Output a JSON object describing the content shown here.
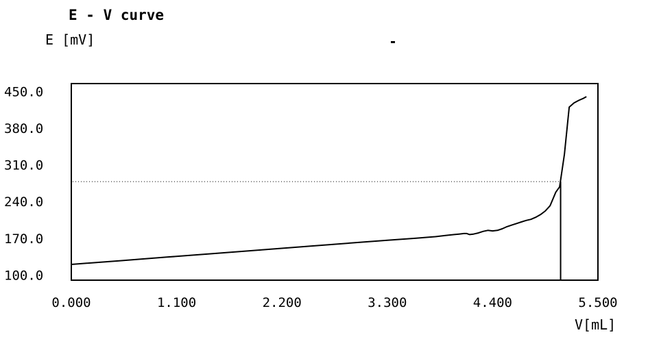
{
  "chart_data": {
    "type": "line",
    "title": "E - V curve",
    "ylabel": "E [mV]",
    "xlabel": "V[mL]",
    "xlim": [
      0.0,
      5.5
    ],
    "ylim": [
      90.0,
      465.0
    ],
    "x_ticks": [
      "0.000",
      "1.100",
      "2.200",
      "3.300",
      "4.400",
      "5.500"
    ],
    "x_tick_values": [
      0.0,
      1.1,
      2.2,
      3.3,
      4.4,
      5.5
    ],
    "y_ticks": [
      "450.0",
      "380.0",
      "310.0",
      "240.0",
      "170.0",
      "100.0"
    ],
    "y_tick_values": [
      450.0,
      380.0,
      310.0,
      240.0,
      170.0,
      100.0
    ],
    "grid": false,
    "series": [
      {
        "x": [
          0.0,
          0.5,
          1.0,
          1.5,
          2.0,
          2.5,
          3.0,
          3.3,
          3.6,
          3.8,
          3.9,
          4.0,
          4.05,
          4.1,
          4.13,
          4.16,
          4.2,
          4.25,
          4.3,
          4.35,
          4.4,
          4.45,
          4.5,
          4.55,
          4.6,
          4.65,
          4.7,
          4.75,
          4.8,
          4.85,
          4.9,
          4.95,
          5.0,
          5.03,
          5.06,
          5.1,
          5.15,
          5.2,
          5.25,
          5.3,
          5.35,
          5.38
        ],
        "y": [
          120,
          127,
          134,
          141,
          148,
          155,
          162,
          166,
          170,
          173,
          175,
          177,
          178,
          179,
          179,
          177,
          178,
          180,
          183,
          185,
          184,
          185,
          188,
          192,
          195,
          198,
          201,
          204,
          206,
          210,
          215,
          222,
          232,
          245,
          258,
          268,
          330,
          420,
          428,
          433,
          437,
          440
        ]
      }
    ],
    "endpoint": {
      "x": 5.11,
      "y": 278.0
    }
  }
}
